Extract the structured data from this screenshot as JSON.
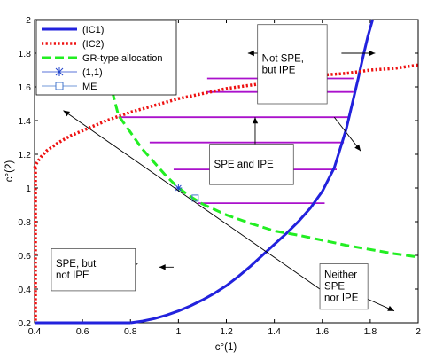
{
  "chart_data": {
    "type": "line",
    "xlabel": "c°(1)",
    "ylabel": "c°(2)",
    "xlim": [
      0.4,
      2.0
    ],
    "ylim": [
      0.2,
      2.0
    ],
    "xticks": [
      "0.4",
      "0.6",
      "0.8",
      "1",
      "1.2",
      "1.4",
      "1.6",
      "1.8",
      "2"
    ],
    "yticks": [
      "0.2",
      "0.4",
      "0.6",
      "0.8",
      "1",
      "1.2",
      "1.4",
      "1.6",
      "1.8",
      "2"
    ],
    "grid": false,
    "legend_position": "top-left",
    "series": [
      {
        "name": "(IC1)",
        "style": "solid",
        "color": "#2222dd",
        "x": [
          0.8,
          0.85,
          0.9,
          0.95,
          1.0,
          1.05,
          1.1,
          1.15,
          1.2,
          1.25,
          1.3,
          1.35,
          1.4,
          1.45,
          1.5,
          1.55,
          1.6,
          1.65,
          1.7,
          1.75,
          1.77,
          1.79,
          1.81
        ],
        "y": [
          0.2,
          0.21,
          0.225,
          0.245,
          0.27,
          0.3,
          0.335,
          0.375,
          0.42,
          0.475,
          0.535,
          0.6,
          0.665,
          0.73,
          0.8,
          0.88,
          0.98,
          1.12,
          1.35,
          1.65,
          1.78,
          1.9,
          2.0
        ]
      },
      {
        "name": "(IC2)",
        "style": "dotted",
        "color": "#ee1111",
        "x": [
          0.4,
          0.41,
          0.43,
          0.45,
          0.5,
          0.55,
          0.6,
          0.7,
          0.8,
          0.9,
          1.0,
          1.1,
          1.2,
          1.3,
          1.4,
          1.5,
          1.6,
          1.7,
          1.8,
          1.9,
          2.0
        ],
        "y": [
          1.12,
          1.15,
          1.19,
          1.22,
          1.27,
          1.31,
          1.34,
          1.4,
          1.45,
          1.49,
          1.53,
          1.56,
          1.59,
          1.61,
          1.63,
          1.65,
          1.67,
          1.68,
          1.7,
          1.71,
          1.73
        ]
      },
      {
        "name": "GR-type allocation",
        "style": "dashed",
        "color": "#22ee22",
        "x": [
          0.71,
          0.75,
          0.8,
          0.85,
          0.9,
          0.95,
          1.0,
          1.05,
          1.1,
          1.2,
          1.3,
          1.4,
          1.5,
          1.6,
          1.7,
          1.8,
          1.9,
          2.0
        ],
        "y": [
          1.65,
          1.43,
          1.33,
          1.23,
          1.15,
          1.07,
          1.0,
          0.95,
          0.905,
          0.84,
          0.79,
          0.745,
          0.72,
          0.69,
          0.66,
          0.635,
          0.61,
          0.59
        ]
      },
      {
        "name": "(1,1)",
        "style": "marker-star",
        "color": "#2244cc",
        "x": [
          1.0
        ],
        "y": [
          1.0
        ]
      },
      {
        "name": "ME",
        "style": "marker-square",
        "color": "#4477cc",
        "x": [
          1.07
        ],
        "y": [
          0.94
        ]
      }
    ],
    "horizontal_segments": {
      "color": "#aa11cc",
      "segments": [
        {
          "x1": 1.12,
          "x2": 1.73,
          "y": 1.65
        },
        {
          "x1": 1.12,
          "x2": 1.73,
          "y": 1.57
        },
        {
          "x1": 0.75,
          "x2": 1.71,
          "y": 1.42
        },
        {
          "x1": 0.88,
          "x2": 1.69,
          "y": 1.27
        },
        {
          "x1": 0.98,
          "x2": 1.66,
          "y": 1.11
        },
        {
          "x1": 1.08,
          "x2": 1.61,
          "y": 0.91
        }
      ]
    },
    "annotations": [
      {
        "lines": [
          "Not SPE,",
          "but IPE"
        ],
        "box": [
          1.33,
          1.5,
          1.62,
          1.97
        ]
      },
      {
        "lines": [
          "SPE and IPE"
        ],
        "box": [
          1.13,
          1.02,
          1.48,
          1.26
        ]
      },
      {
        "lines": [
          "SPE, but",
          "not IPE"
        ],
        "box": [
          0.47,
          0.39,
          0.82,
          0.64
        ]
      },
      {
        "lines": [
          "Neither",
          "SPE",
          "nor IPE"
        ],
        "box": [
          1.59,
          0.28,
          1.79,
          0.55
        ]
      }
    ],
    "arrows": [
      {
        "x1": 1.43,
        "y1": 1.8,
        "x2": 1.29,
        "y2": 1.8
      },
      {
        "x1": 1.68,
        "y1": 1.8,
        "x2": 1.82,
        "y2": 1.8
      },
      {
        "x1": 1.65,
        "y1": 1.42,
        "x2": 1.76,
        "y2": 1.22
      },
      {
        "x1": 1.32,
        "y1": 1.26,
        "x2": 1.32,
        "y2": 1.42
      },
      {
        "x1": 0.75,
        "y1": 0.51,
        "x2": 0.83,
        "y2": 0.55
      },
      {
        "x1": 0.98,
        "y1": 0.53,
        "x2": 0.92,
        "y2": 0.53
      },
      {
        "x1": 1.79,
        "y1": 0.34,
        "x2": 1.9,
        "y2": 0.27
      },
      {
        "x1": 1.61,
        "y1": 0.38,
        "x2": 0.52,
        "y2": 1.46
      }
    ]
  }
}
